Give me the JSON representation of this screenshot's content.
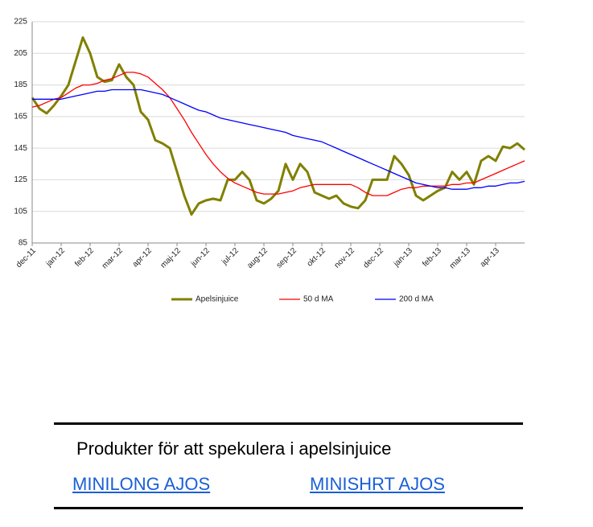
{
  "chart_data": {
    "type": "line",
    "categories": [
      "dec-11",
      null,
      null,
      null,
      "jan-12",
      null,
      null,
      null,
      "feb-12",
      null,
      null,
      null,
      "mar-12",
      null,
      null,
      null,
      "apr-12",
      null,
      null,
      null,
      "maj-12",
      null,
      null,
      null,
      "jun-12",
      null,
      null,
      null,
      "jul-12",
      null,
      null,
      null,
      "aug-12",
      null,
      null,
      null,
      "sep-12",
      null,
      null,
      null,
      "okt-12",
      null,
      null,
      null,
      "nov-12",
      null,
      null,
      null,
      "dec-12",
      null,
      null,
      null,
      "jan-13",
      null,
      null,
      null,
      "feb-13",
      null,
      null,
      null,
      "mar-13",
      null,
      null,
      null,
      "apr-13",
      null,
      null,
      null,
      null
    ],
    "series": [
      {
        "name": "Apelsinjuice",
        "color": "#808000",
        "values": [
          177,
          170,
          167,
          172,
          178,
          185,
          200,
          215,
          205,
          190,
          187,
          188,
          198,
          190,
          185,
          168,
          163,
          150,
          148,
          145,
          130,
          115,
          103,
          110,
          112,
          113,
          112,
          125,
          125,
          130,
          125,
          112,
          110,
          113,
          118,
          135,
          125,
          135,
          130,
          117,
          115,
          113,
          115,
          110,
          108,
          107,
          112,
          125,
          125,
          125,
          140,
          135,
          128,
          115,
          112,
          115,
          118,
          120,
          130,
          125,
          130,
          122,
          137,
          140,
          137,
          146,
          145,
          148,
          144
        ]
      },
      {
        "name": "50 d MA",
        "color": "#ff0000",
        "values": [
          171,
          172,
          174,
          176,
          177,
          180,
          183,
          185,
          185,
          186,
          188,
          189,
          191,
          193,
          193,
          192,
          190,
          186,
          182,
          177,
          170,
          163,
          155,
          148,
          141,
          135,
          130,
          126,
          123,
          121,
          119,
          117,
          116,
          116,
          116,
          117,
          118,
          120,
          121,
          122,
          122,
          122,
          122,
          122,
          122,
          120,
          117,
          115,
          115,
          115,
          117,
          119,
          120,
          120,
          121,
          121,
          121,
          121,
          122,
          122,
          123,
          123,
          125,
          127,
          129,
          131,
          133,
          135,
          137
        ]
      },
      {
        "name": "200 d MA",
        "color": "#0000ff",
        "values": [
          176,
          176,
          176,
          176,
          176,
          177,
          178,
          179,
          180,
          181,
          181,
          182,
          182,
          182,
          182,
          182,
          181,
          180,
          179,
          177,
          175,
          173,
          171,
          169,
          168,
          166,
          164,
          163,
          162,
          161,
          160,
          159,
          158,
          157,
          156,
          155,
          153,
          152,
          151,
          150,
          149,
          147,
          145,
          143,
          141,
          139,
          137,
          135,
          133,
          131,
          129,
          127,
          125,
          123,
          122,
          121,
          120,
          120,
          119,
          119,
          119,
          120,
          120,
          121,
          121,
          122,
          123,
          123,
          124
        ]
      }
    ],
    "ylim": [
      85,
      225
    ],
    "yticks": [
      85,
      105,
      125,
      145,
      165,
      185,
      205,
      225
    ],
    "grid": true,
    "legend": "bottom"
  },
  "products": {
    "title": "Produkter för att spekulera i apelsinjuice",
    "links": [
      "MINILONG AJOS",
      "MINISHRT AJOS"
    ]
  }
}
